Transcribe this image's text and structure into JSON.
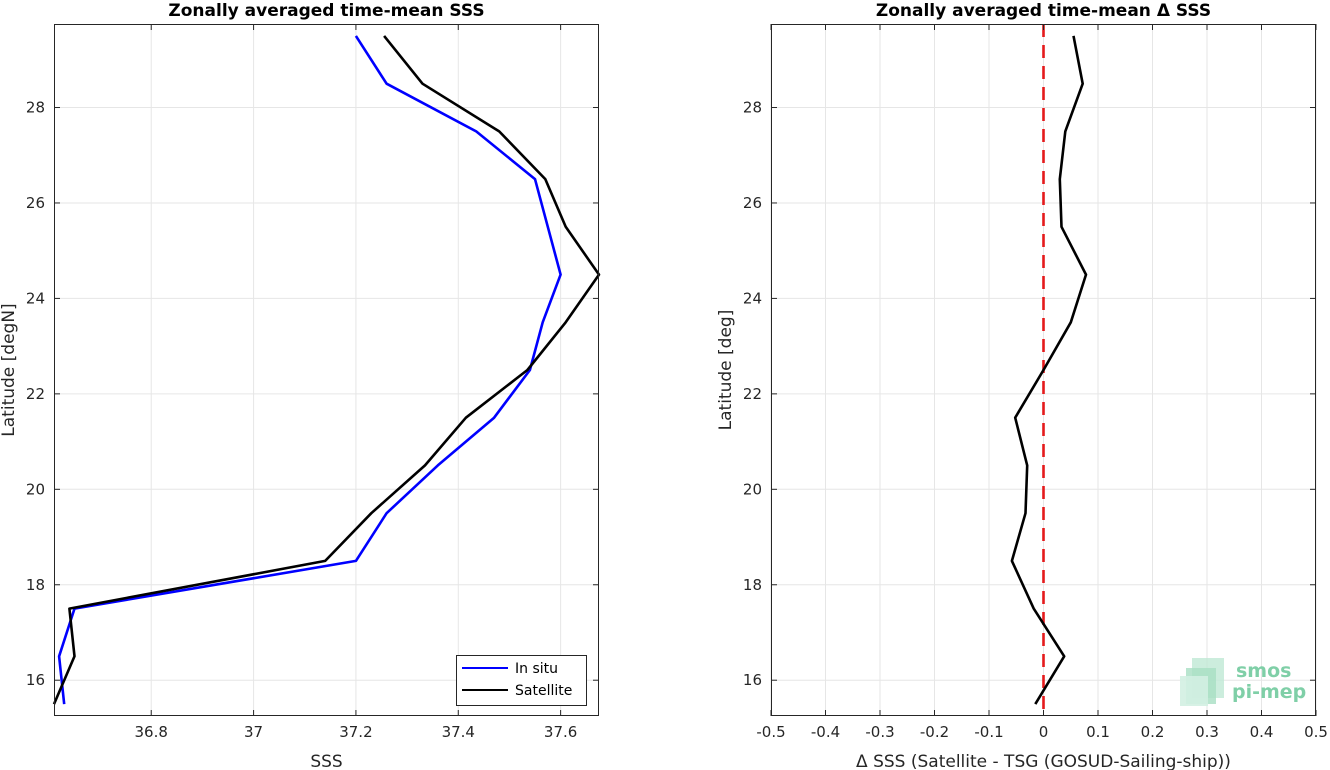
{
  "chart_data": [
    {
      "type": "line",
      "title": "Zonally averaged time-mean SSS",
      "xlabel": "SSS",
      "ylabel": "Latitude [degN]",
      "xlim": [
        36.61,
        37.675
      ],
      "ylim": [
        15.25,
        29.75
      ],
      "xticks": [
        36.8,
        37,
        37.2,
        37.4,
        37.6
      ],
      "xtick_labels": [
        "36.8",
        "37",
        "37.2",
        "37.4",
        "37.6"
      ],
      "yticks": [
        16,
        18,
        20,
        22,
        24,
        26,
        28
      ],
      "ytick_labels": [
        "16",
        "18",
        "20",
        "22",
        "24",
        "26",
        "28"
      ],
      "grid": true,
      "legend_position": "bottom-right",
      "series": [
        {
          "name": "In situ",
          "color": "#0000ff",
          "points": [
            [
              37.2,
              29.5
            ],
            [
              37.26,
              28.5
            ],
            [
              37.435,
              27.5
            ],
            [
              37.55,
              26.5
            ],
            [
              37.575,
              25.5
            ],
            [
              37.6,
              24.5
            ],
            [
              37.565,
              23.5
            ],
            [
              37.54,
              22.5
            ],
            [
              37.47,
              21.5
            ],
            [
              37.36,
              20.5
            ],
            [
              37.26,
              19.5
            ],
            [
              37.2,
              18.5
            ],
            [
              36.65,
              17.5
            ],
            [
              36.62,
              16.5
            ],
            [
              36.63,
              15.5
            ]
          ]
        },
        {
          "name": "Satellite",
          "color": "#000000",
          "points": [
            [
              37.255,
              29.5
            ],
            [
              37.33,
              28.5
            ],
            [
              37.48,
              27.5
            ],
            [
              37.57,
              26.5
            ],
            [
              37.61,
              25.5
            ],
            [
              37.675,
              24.5
            ],
            [
              37.61,
              23.5
            ],
            [
              37.535,
              22.5
            ],
            [
              37.415,
              21.5
            ],
            [
              37.335,
              20.5
            ],
            [
              37.23,
              19.5
            ],
            [
              37.14,
              18.5
            ],
            [
              36.64,
              17.5
            ],
            [
              36.65,
              16.5
            ],
            [
              36.61,
              15.5
            ]
          ]
        }
      ]
    },
    {
      "type": "line",
      "title": "Zonally averaged time-mean Δ SSS",
      "xlabel": "Δ SSS (Satellite - TSG (GOSUD-Sailing-ship))",
      "ylabel": "Latitude [deg]",
      "xlim": [
        -0.5,
        0.5
      ],
      "ylim": [
        15.25,
        29.75
      ],
      "xticks": [
        -0.5,
        -0.4,
        -0.3,
        -0.2,
        -0.1,
        0,
        0.1,
        0.2,
        0.3,
        0.4,
        0.5
      ],
      "xtick_labels": [
        "-0.5",
        "-0.4",
        "-0.3",
        "-0.2",
        "-0.1",
        "0",
        "0.1",
        "0.2",
        "0.3",
        "0.4",
        "0.5"
      ],
      "yticks": [
        16,
        18,
        20,
        22,
        24,
        26,
        28
      ],
      "ytick_labels": [
        "16",
        "18",
        "20",
        "22",
        "24",
        "26",
        "28"
      ],
      "grid": true,
      "reference_line": {
        "x": 0,
        "color": "#e41a1c",
        "style": "dashed"
      },
      "series": [
        {
          "color": "#000000",
          "points": [
            [
              0.055,
              29.5
            ],
            [
              0.072,
              28.5
            ],
            [
              0.04,
              27.5
            ],
            [
              0.03,
              26.5
            ],
            [
              0.033,
              25.5
            ],
            [
              0.078,
              24.5
            ],
            [
              0.05,
              23.5
            ],
            [
              0.0,
              22.5
            ],
            [
              -0.052,
              21.5
            ],
            [
              -0.03,
              20.5
            ],
            [
              -0.033,
              19.5
            ],
            [
              -0.058,
              18.5
            ],
            [
              -0.018,
              17.5
            ],
            [
              0.038,
              16.5
            ],
            [
              -0.015,
              15.5
            ]
          ]
        }
      ]
    }
  ],
  "logo": {
    "line1": "smos",
    "line2": "pi-mep",
    "color": "#7fcfa7"
  }
}
